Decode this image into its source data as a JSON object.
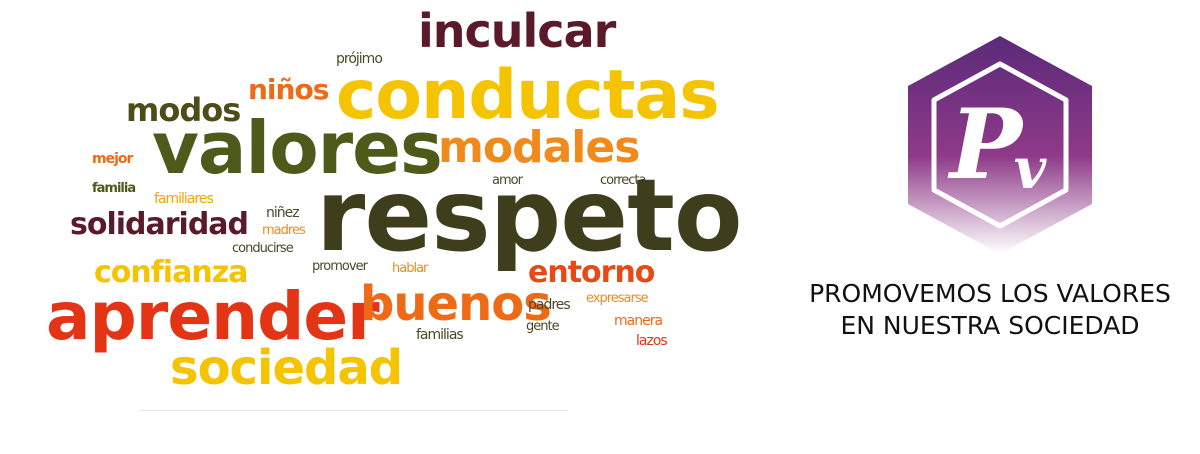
{
  "word_cloud": {
    "words": [
      "inculcar",
      "prójimo",
      "niños",
      "conductas",
      "modos",
      "valores",
      "modales",
      "mejor",
      "familia",
      "familiares",
      "amor",
      "correcta",
      "respeto",
      "solidaridad",
      "niñez",
      "madres",
      "conducirse",
      "confianza",
      "promover",
      "hablar",
      "entorno",
      "aprender",
      "buenos",
      "expresarse",
      "padres",
      "gente",
      "manera",
      "familias",
      "lazos",
      "sociedad"
    ],
    "palette": {
      "dark_maroon": "#5a1a2a",
      "olive": "#4d5a1a",
      "dark_olive": "#3e3e1c",
      "yellow": "#f5c400",
      "orange": "#f08a1c",
      "red": "#e43416"
    }
  },
  "logo": {
    "letters": "Pv",
    "shape": "hexagon-badge",
    "colors": {
      "top": "#5b2a7a",
      "mid": "#8e3a88",
      "fade": "#ffffff"
    }
  },
  "tagline": {
    "line1": "PROMOVEMOS LOS VALORES",
    "line2": "EN NUESTRA SOCIEDAD"
  }
}
